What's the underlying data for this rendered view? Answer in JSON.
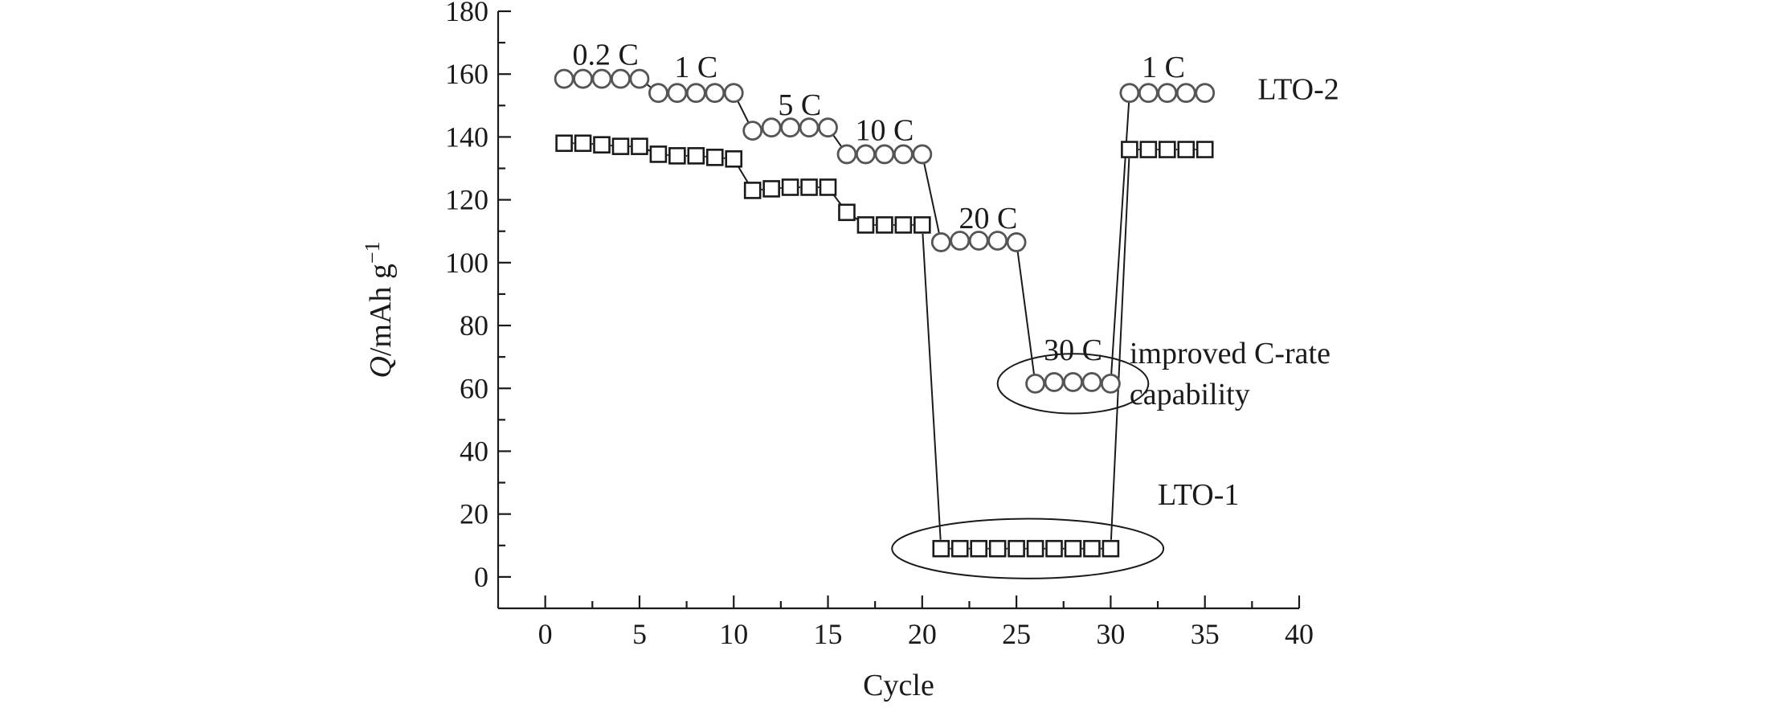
{
  "chart_data": {
    "type": "scatter",
    "title": "",
    "xlabel": "Cycle",
    "ylabel": {
      "italic": "Q",
      "rest": "/mAh g",
      "sup": "−1"
    },
    "xlim": [
      -2.5,
      40
    ],
    "ylim": [
      -10,
      180
    ],
    "xticks": [
      0,
      5,
      10,
      15,
      20,
      25,
      30,
      35,
      40
    ],
    "yticks": [
      0,
      20,
      40,
      60,
      80,
      100,
      120,
      140,
      160,
      180
    ],
    "grid": false,
    "series": [
      {
        "name": "LTO-2",
        "marker": "circle",
        "x": [
          1,
          2,
          3,
          4,
          5,
          6,
          7,
          8,
          9,
          10,
          11,
          12,
          13,
          14,
          15,
          16,
          17,
          18,
          19,
          20,
          21,
          22,
          23,
          24,
          25,
          26,
          27,
          28,
          29,
          30,
          31,
          32,
          33,
          34,
          35
        ],
        "y": [
          158.5,
          158.5,
          158.5,
          158.5,
          158.5,
          154,
          154,
          154,
          154,
          154,
          142,
          143,
          143,
          143,
          143,
          134.5,
          134.5,
          134.5,
          134.5,
          134.5,
          106.5,
          107,
          107,
          107,
          106.5,
          61.5,
          62,
          62,
          62,
          61.5,
          154,
          154,
          154,
          154,
          154
        ]
      },
      {
        "name": "LTO-1",
        "marker": "square",
        "x": [
          1,
          2,
          3,
          4,
          5,
          6,
          7,
          8,
          9,
          10,
          11,
          12,
          13,
          14,
          15,
          16,
          17,
          18,
          19,
          20,
          21,
          22,
          23,
          24,
          25,
          26,
          27,
          28,
          29,
          30,
          31,
          32,
          33,
          34,
          35
        ],
        "y": [
          138,
          138,
          137.5,
          137,
          137,
          134.5,
          134,
          134,
          133.5,
          133,
          123,
          123.5,
          124,
          124,
          124,
          116,
          112,
          112,
          112,
          112,
          9,
          9,
          9,
          9,
          9,
          9,
          9,
          9,
          9,
          9,
          136,
          136,
          136,
          136,
          136
        ]
      }
    ],
    "annotations": [
      {
        "text": "0.2 C",
        "x": 3.2,
        "y": 163
      },
      {
        "text": "1 C",
        "x": 8.0,
        "y": 159
      },
      {
        "text": "5 C",
        "x": 13.5,
        "y": 147
      },
      {
        "text": "10 C",
        "x": 18.0,
        "y": 139
      },
      {
        "text": "20 C",
        "x": 23.5,
        "y": 111
      },
      {
        "text": "30 C",
        "x": 28.0,
        "y": 69
      },
      {
        "text": "1 C",
        "x": 32.8,
        "y": 159
      },
      {
        "text": "LTO-2",
        "x": 37.8,
        "y": 152
      },
      {
        "text": "LTO-1",
        "x": 32.5,
        "y": 23
      },
      {
        "text": "improved C-rate",
        "x": 31.0,
        "y": 68
      },
      {
        "text": "capability",
        "x": 31.0,
        "y": 55
      }
    ],
    "highlight_ellipses": [
      {
        "name": "30C-ellipse",
        "cx": 28.0,
        "cy": 61.5,
        "rx": 4.0,
        "ry": 9.5
      },
      {
        "name": "LTO-1-low-ellipse",
        "cx": 25.6,
        "cy": 9,
        "rx": 7.2,
        "ry": 9.5
      }
    ]
  }
}
